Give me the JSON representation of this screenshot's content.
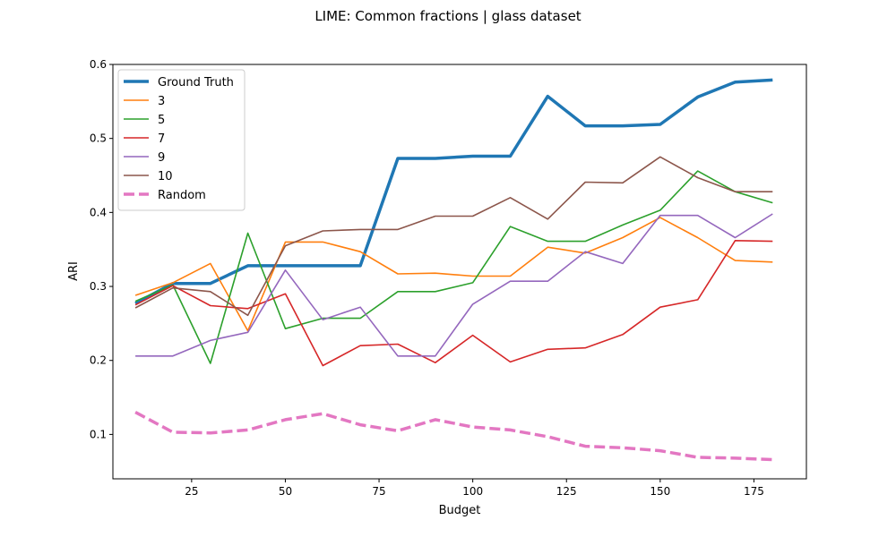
{
  "chart_data": {
    "type": "line",
    "title": "LIME: Common fractions | glass dataset",
    "xlabel": "Budget",
    "ylabel": "ARI",
    "xlim": [
      4,
      189
    ],
    "ylim": [
      0.04,
      0.6
    ],
    "xticks": [
      25,
      50,
      75,
      100,
      125,
      150,
      175
    ],
    "yticks": [
      0.1,
      0.2,
      0.3,
      0.4,
      0.5,
      0.6
    ],
    "xtick_labels": [
      "25",
      "50",
      "75",
      "100",
      "125",
      "150",
      "175"
    ],
    "ytick_labels": [
      "0.1",
      "0.2",
      "0.3",
      "0.4",
      "0.5",
      "0.6"
    ],
    "grid": false,
    "legend_position": "top-left",
    "x": [
      10,
      20,
      30,
      40,
      50,
      60,
      70,
      80,
      90,
      100,
      110,
      120,
      130,
      140,
      150,
      160,
      170,
      180
    ],
    "series": [
      {
        "name": "Ground Truth",
        "color": "#1f77b4",
        "style": "thick",
        "values": [
          0.277,
          0.304,
          0.304,
          0.328,
          0.328,
          0.328,
          0.328,
          0.473,
          0.473,
          0.476,
          0.476,
          0.557,
          0.517,
          0.517,
          0.519,
          0.556,
          0.576,
          0.579
        ]
      },
      {
        "name": "3",
        "color": "#ff7f0e",
        "style": "solid",
        "values": [
          0.288,
          0.305,
          0.331,
          0.24,
          0.36,
          0.36,
          0.347,
          0.317,
          0.318,
          0.314,
          0.314,
          0.353,
          0.345,
          0.366,
          0.393,
          0.366,
          0.335,
          0.333
        ]
      },
      {
        "name": "5",
        "color": "#2ca02c",
        "style": "solid",
        "values": [
          0.28,
          0.302,
          0.196,
          0.372,
          0.243,
          0.257,
          0.257,
          0.293,
          0.293,
          0.305,
          0.381,
          0.361,
          0.361,
          0.383,
          0.403,
          0.456,
          0.428,
          0.413
        ]
      },
      {
        "name": "7",
        "color": "#d62728",
        "style": "solid",
        "values": [
          0.275,
          0.301,
          0.274,
          0.27,
          0.29,
          0.193,
          0.22,
          0.222,
          0.197,
          0.234,
          0.198,
          0.215,
          0.217,
          0.235,
          0.272,
          0.282,
          0.362,
          0.361
        ]
      },
      {
        "name": "9",
        "color": "#9467bd",
        "style": "solid",
        "values": [
          0.206,
          0.206,
          0.227,
          0.238,
          0.322,
          0.255,
          0.272,
          0.206,
          0.206,
          0.276,
          0.307,
          0.307,
          0.347,
          0.331,
          0.396,
          0.396,
          0.366,
          0.398
        ]
      },
      {
        "name": "10",
        "color": "#8c564b",
        "style": "solid",
        "values": [
          0.271,
          0.298,
          0.293,
          0.261,
          0.355,
          0.375,
          0.377,
          0.377,
          0.395,
          0.395,
          0.42,
          0.391,
          0.441,
          0.44,
          0.475,
          0.447,
          0.428,
          0.428
        ]
      },
      {
        "name": "Random",
        "color": "#e377c2",
        "style": "dashed",
        "values": [
          0.13,
          0.103,
          0.102,
          0.106,
          0.12,
          0.128,
          0.113,
          0.105,
          0.12,
          0.11,
          0.106,
          0.097,
          0.084,
          0.082,
          0.078,
          0.069,
          0.068,
          0.066
        ]
      }
    ]
  }
}
